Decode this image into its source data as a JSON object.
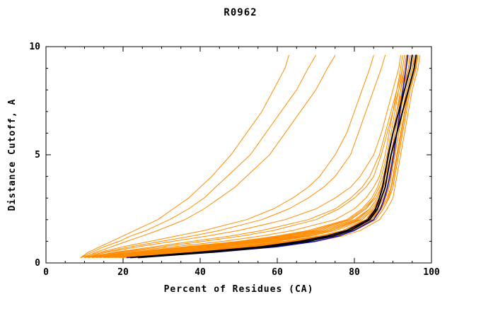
{
  "chart_data": {
    "type": "line",
    "title": "R0962",
    "xlabel": "Percent of Residues (CA)",
    "ylabel": "Distance Cutoff, A",
    "axes": {
      "xlim": [
        0,
        100
      ],
      "ylim": [
        0,
        10
      ],
      "xticks_major": [
        0,
        20,
        40,
        60,
        80,
        100
      ],
      "yticks_major": [
        0,
        5,
        10
      ],
      "x_minor_step": 5,
      "y_minor_step": 1,
      "grid": false,
      "frame": true
    },
    "legend": "none",
    "colors": {
      "orange": "#ff8c00",
      "black": "#000000",
      "blue": "#1515c0"
    },
    "y_grid": [
      0.25,
      0.5,
      0.75,
      1,
      1.25,
      1.5,
      2,
      2.5,
      3,
      3.5,
      4,
      5,
      6,
      7,
      8,
      9,
      9.6
    ],
    "series": [
      {
        "color": "orange",
        "x": [
          14,
          30,
          48,
          62,
          71,
          77,
          83,
          85,
          86.5,
          87.5,
          88,
          89,
          90,
          91,
          92,
          93,
          93.5
        ]
      },
      {
        "color": "orange",
        "x": [
          12,
          26,
          42,
          56,
          66,
          73,
          81,
          84,
          86,
          87,
          88,
          89,
          90,
          91,
          92.5,
          94,
          94.5
        ]
      },
      {
        "color": "orange",
        "x": [
          16,
          34,
          52,
          65,
          73,
          78,
          84,
          86,
          87.5,
          88.5,
          89,
          90,
          91,
          92,
          93,
          94.5,
          95
        ]
      },
      {
        "color": "orange",
        "x": [
          10,
          22,
          36,
          50,
          60,
          68,
          78,
          82,
          84.5,
          86,
          87,
          88.5,
          89.5,
          90.5,
          91.5,
          92.5,
          93
        ]
      },
      {
        "color": "orange",
        "x": [
          18,
          38,
          56,
          68,
          75,
          80,
          85,
          87,
          88,
          89,
          89.5,
          90.5,
          91.5,
          92.5,
          93.5,
          95,
          95.5
        ]
      },
      {
        "color": "orange",
        "x": [
          13,
          28,
          45,
          59,
          68,
          74,
          82,
          85,
          86.5,
          87.5,
          88.5,
          89.5,
          90.5,
          91.5,
          92.5,
          93.5,
          94
        ]
      },
      {
        "color": "orange",
        "x": [
          15,
          32,
          50,
          63,
          72,
          78,
          84,
          86.5,
          88,
          89,
          89.5,
          90.5,
          91.5,
          92.5,
          93.5,
          95,
          96
        ]
      },
      {
        "color": "orange",
        "x": [
          11,
          24,
          39,
          53,
          63,
          70,
          79,
          83,
          85,
          86.5,
          87.5,
          89,
          90,
          91,
          92,
          93,
          93.5
        ]
      },
      {
        "color": "orange",
        "x": [
          17,
          36,
          54,
          66,
          74,
          79,
          85,
          87,
          88.5,
          89.5,
          90,
          91,
          92,
          93,
          94,
          95.5,
          96
        ]
      },
      {
        "color": "orange",
        "x": [
          12,
          25,
          40,
          54,
          64,
          71,
          80,
          84,
          86,
          87,
          88,
          89.5,
          90.5,
          91.5,
          92.5,
          94,
          94.5
        ]
      },
      {
        "color": "orange",
        "x": [
          20,
          40,
          57,
          68,
          75,
          80,
          85.5,
          87.5,
          89,
          90,
          90.5,
          91.5,
          92.5,
          93.5,
          94.5,
          96,
          96.5
        ]
      },
      {
        "color": "orange",
        "x": [
          14,
          29,
          46,
          60,
          69,
          75,
          83,
          86,
          87.5,
          88.5,
          89,
          90,
          91,
          92,
          93,
          94,
          94.5
        ]
      },
      {
        "color": "orange",
        "x": [
          16,
          33,
          51,
          64,
          72,
          78,
          84.5,
          87,
          88,
          89,
          89.5,
          90.5,
          91.5,
          92.5,
          93.5,
          95,
          95.5
        ]
      },
      {
        "color": "orange",
        "x": [
          10,
          20,
          33,
          46,
          56,
          64,
          75,
          80,
          83,
          85,
          86.5,
          88,
          89,
          90,
          91,
          92,
          92.5
        ]
      },
      {
        "color": "orange",
        "x": [
          13,
          27,
          43,
          57,
          67,
          73,
          81.5,
          84.5,
          86.5,
          87.5,
          88.5,
          89.5,
          90.5,
          91.5,
          92.5,
          93.5,
          94
        ]
      },
      {
        "color": "orange",
        "x": [
          15,
          31,
          49,
          62,
          71,
          77,
          83.5,
          86,
          87.5,
          88.5,
          89,
          90,
          91,
          92,
          93,
          94.5,
          95
        ]
      },
      {
        "color": "orange",
        "x": [
          18,
          37,
          55,
          67,
          74,
          79.5,
          85,
          87,
          88.5,
          89.5,
          90,
          91,
          92,
          93,
          94,
          95.5,
          96.5
        ]
      },
      {
        "color": "orange",
        "x": [
          11,
          23,
          37,
          51,
          61,
          69,
          78.5,
          82.5,
          85,
          86.5,
          87.5,
          89,
          90,
          91,
          92,
          93.5,
          94
        ]
      },
      {
        "color": "orange",
        "x": [
          19,
          39,
          56,
          68,
          75,
          80,
          85.5,
          87.5,
          89,
          90,
          90.5,
          91.5,
          92.5,
          93.5,
          94.5,
          96,
          96.5
        ]
      },
      {
        "color": "orange",
        "x": [
          12,
          26,
          41,
          55,
          65,
          72,
          80.5,
          84,
          86,
          87,
          88,
          89,
          90,
          91,
          92.5,
          94,
          94.5
        ]
      },
      {
        "color": "orange",
        "x": [
          10,
          18,
          28,
          38,
          48,
          56,
          68,
          75,
          79,
          82,
          84,
          86.5,
          88,
          89.5,
          91,
          92.5,
          93
        ]
      },
      {
        "color": "orange",
        "x": [
          10,
          16,
          24,
          33,
          42,
          50,
          62,
          70,
          75,
          79,
          81.5,
          85,
          87,
          88.5,
          90,
          91.5,
          92
        ]
      },
      {
        "color": "orange",
        "x": [
          11,
          19,
          30,
          41,
          51,
          59,
          70,
          76,
          80,
          83,
          85,
          87,
          88.5,
          90,
          91.5,
          93,
          93.5
        ]
      },
      {
        "color": "orange",
        "x": [
          10,
          15,
          22,
          30,
          38,
          45,
          56,
          63,
          68,
          72,
          75,
          79,
          81,
          83,
          85,
          87,
          88
        ]
      },
      {
        "color": "orange",
        "x": [
          9,
          14,
          20,
          27,
          34,
          41,
          52,
          59,
          64,
          68,
          71,
          75,
          78,
          80,
          82,
          84,
          85
        ]
      },
      {
        "color": "orange",
        "x": [
          9,
          11,
          14,
          17,
          20,
          23,
          29,
          33,
          37,
          40,
          43,
          48,
          52,
          56,
          59,
          62,
          63
        ]
      },
      {
        "color": "orange",
        "x": [
          10,
          13,
          17,
          21,
          25,
          29,
          36,
          41,
          45,
          49,
          52,
          58,
          62,
          66,
          70,
          73,
          75
        ]
      },
      {
        "color": "orange",
        "x": [
          9,
          12,
          15,
          19,
          22,
          26,
          32,
          37,
          41,
          44,
          47,
          53,
          57,
          61,
          65,
          68,
          70
        ]
      },
      {
        "color": "orange",
        "x": [
          16,
          35,
          53,
          66,
          74,
          79,
          85,
          87,
          88,
          89,
          89.5,
          90.5,
          91.5,
          92.5,
          93.5,
          95,
          95.5
        ]
      },
      {
        "color": "orange",
        "x": [
          13,
          28,
          44,
          58,
          68,
          74,
          82,
          85,
          87,
          88,
          88.5,
          89.5,
          91,
          92,
          93,
          94.5,
          95
        ]
      },
      {
        "color": "orange",
        "x": [
          20,
          42,
          60,
          70,
          77,
          81.5,
          86.5,
          88.5,
          90,
          90.5,
          91,
          92,
          93,
          94,
          95,
          96.5,
          97
        ]
      },
      {
        "color": "orange",
        "x": [
          15,
          32,
          50,
          63,
          71,
          77,
          83,
          85.5,
          87,
          88,
          88.5,
          89.5,
          90.5,
          91.5,
          92.5,
          94,
          94.5
        ]
      },
      {
        "color": "orange",
        "x": [
          17,
          35,
          53,
          65,
          73,
          78.5,
          84.5,
          86.5,
          88,
          89,
          89.5,
          90.5,
          91.5,
          92.5,
          93.5,
          95,
          95.5
        ]
      },
      {
        "color": "orange",
        "x": [
          12,
          24,
          38,
          52,
          62,
          70,
          79,
          83,
          85.5,
          87,
          88,
          89,
          90,
          91,
          92,
          93.5,
          94
        ]
      },
      {
        "color": "orange",
        "x": [
          19,
          40,
          57,
          68,
          75,
          80,
          85.5,
          87.5,
          88.8,
          89.6,
          90.2,
          91.2,
          92.2,
          93.2,
          94.2,
          95.8,
          96.3
        ]
      },
      {
        "color": "blue",
        "lw": 1.6,
        "x": [
          21,
          44,
          60,
          70,
          76,
          80,
          85,
          86.8,
          87.8,
          88.6,
          89.2,
          90.2,
          91,
          91.8,
          92.6,
          93.4,
          93.8
        ]
      },
      {
        "color": "black",
        "lw": 2,
        "x": [
          22,
          40,
          56,
          66,
          73,
          78,
          83.5,
          85.5,
          86.5,
          87.3,
          87.8,
          88.8,
          90,
          91.5,
          93,
          94.5,
          95
        ]
      },
      {
        "color": "black",
        "lw": 2,
        "x": [
          24,
          43,
          58,
          68,
          74.5,
          79,
          84,
          86,
          87,
          88,
          88.5,
          89.5,
          91,
          92.5,
          94,
          95.5,
          96
        ]
      }
    ]
  }
}
